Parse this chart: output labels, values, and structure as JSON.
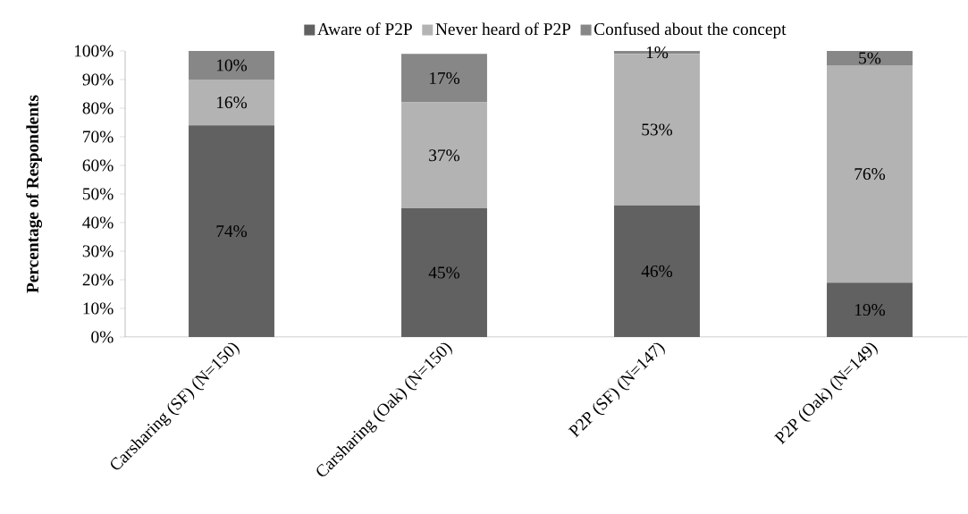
{
  "chart_data": {
    "type": "bar",
    "stacked": true,
    "ylabel": "Percentage of Respondents",
    "categories": [
      "Carsharing (SF) (N=150)",
      "Carsharing (Oak) (N=150)",
      "P2P (SF) (N=147)",
      "P2P (Oak) (N=149)"
    ],
    "series": [
      {
        "name": "Aware of P2P",
        "color": "#616161",
        "values": [
          74,
          45,
          46,
          19
        ],
        "value_labels": [
          "74%",
          "45%",
          "46%",
          "19%"
        ]
      },
      {
        "name": "Never heard of P2P",
        "color": "#b3b3b3",
        "values": [
          16,
          37,
          53,
          76
        ],
        "value_labels": [
          "16%",
          "37%",
          "53%",
          "76%"
        ]
      },
      {
        "name": "Confused about the concept",
        "color": "#878787",
        "values": [
          10,
          17,
          1,
          5
        ],
        "value_labels": [
          "10%",
          "17%",
          "1%",
          "5%"
        ]
      }
    ],
    "ylim": [
      0,
      100
    ],
    "yticks": [
      {
        "value": 0,
        "label": "0%"
      },
      {
        "value": 10,
        "label": "10%"
      },
      {
        "value": 20,
        "label": "20%"
      },
      {
        "value": 30,
        "label": "30%"
      },
      {
        "value": 40,
        "label": "40%"
      },
      {
        "value": 50,
        "label": "50%"
      },
      {
        "value": 60,
        "label": "60%"
      },
      {
        "value": 70,
        "label": "70%"
      },
      {
        "value": 80,
        "label": "80%"
      },
      {
        "value": 90,
        "label": "90%"
      },
      {
        "value": 100,
        "label": "100%"
      }
    ],
    "grid": false,
    "legend": "top"
  }
}
